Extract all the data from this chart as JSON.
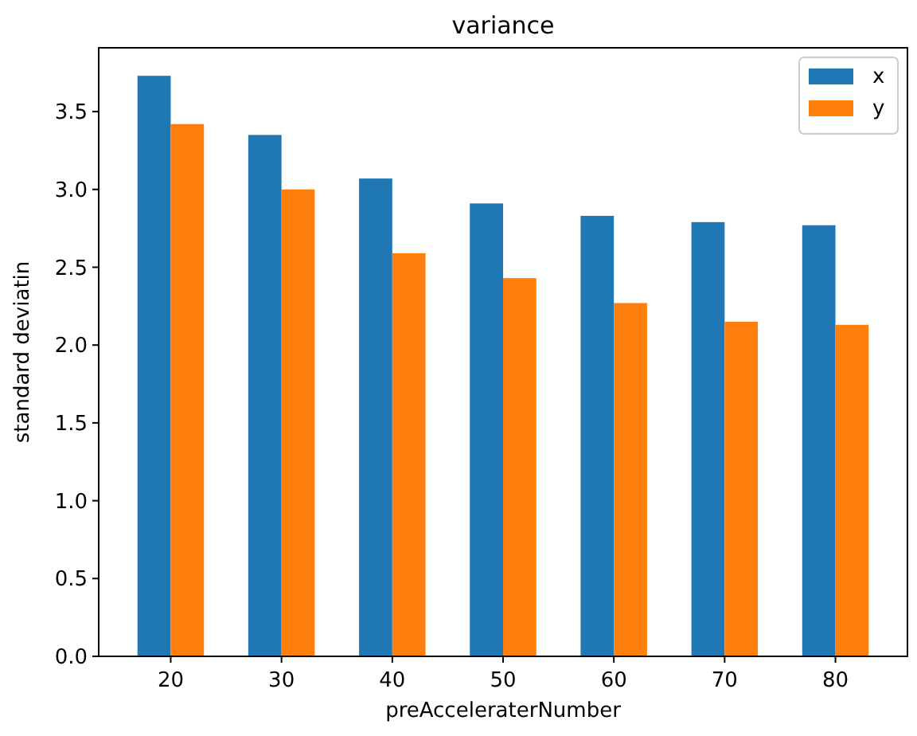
{
  "chart_data": {
    "type": "bar",
    "title": "variance",
    "xlabel": "preAcceleraterNumber",
    "ylabel": "standard deviatin",
    "categories": [
      "20",
      "30",
      "40",
      "50",
      "60",
      "70",
      "80"
    ],
    "series": [
      {
        "name": "x",
        "color": "#1f77b4",
        "values": [
          3.73,
          3.35,
          3.07,
          2.91,
          2.83,
          2.79,
          2.77
        ]
      },
      {
        "name": "y",
        "color": "#ff7f0e",
        "values": [
          3.42,
          3.0,
          2.59,
          2.43,
          2.27,
          2.15,
          2.13
        ]
      }
    ],
    "ylim": [
      0,
      3.91
    ],
    "yticks": [
      {
        "value": 0,
        "label": "0.0"
      },
      {
        "value": 0.5,
        "label": "0.5"
      },
      {
        "value": 1,
        "label": "1.0"
      },
      {
        "value": 1.5,
        "label": "1.5"
      },
      {
        "value": 2,
        "label": "2.0"
      },
      {
        "value": 2.5,
        "label": "2.5"
      },
      {
        "value": 3,
        "label": "3.0"
      },
      {
        "value": 3.5,
        "label": "3.5"
      }
    ],
    "grid": false,
    "legend": "top right"
  }
}
